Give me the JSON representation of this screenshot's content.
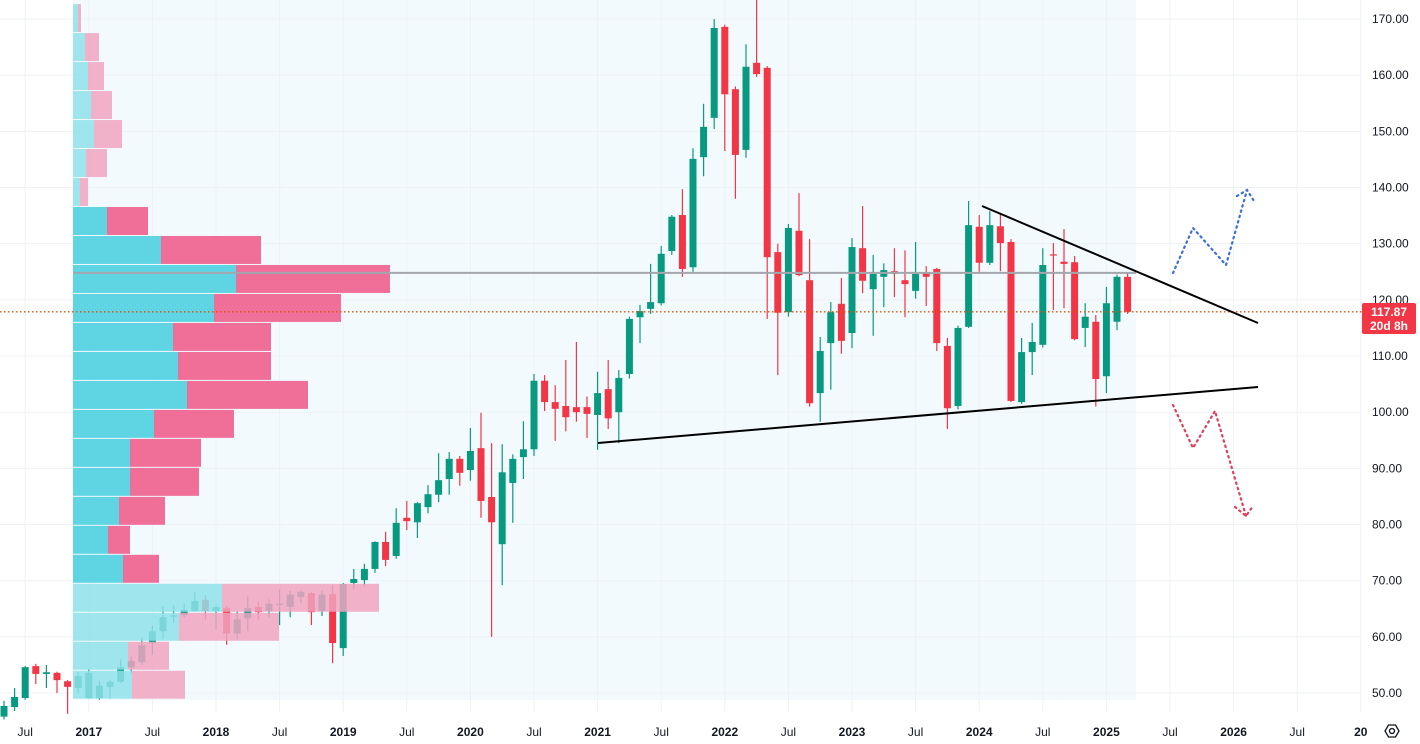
{
  "chart_data": {
    "type": "candlestick",
    "interval": "monthly",
    "start_month": "2016-05",
    "ohlc": [
      [
        45.8,
        48.6,
        45.3,
        47.7
      ],
      [
        47.5,
        50.9,
        46.8,
        49.3
      ],
      [
        49.1,
        54.8,
        48.8,
        54.6
      ],
      [
        54.8,
        55.2,
        51.6,
        53.4
      ],
      [
        53.4,
        55.0,
        50.9,
        53.7
      ],
      [
        53.6,
        53.8,
        50.0,
        52.3
      ],
      [
        52.1,
        52.3,
        46.3,
        51.1
      ],
      [
        50.9,
        53.7,
        50.0,
        53.0
      ],
      [
        49.1,
        54.3,
        49.0,
        53.6
      ],
      [
        49.1,
        52.2,
        48.8,
        51.3
      ],
      [
        51.1,
        52.3,
        49.0,
        52.0
      ],
      [
        52.0,
        56.0,
        51.8,
        54.6
      ],
      [
        54.6,
        56.4,
        53.6,
        55.7
      ],
      [
        55.5,
        59.9,
        55.0,
        58.5
      ],
      [
        58.9,
        62.0,
        56.8,
        61.0
      ],
      [
        61.0,
        65.5,
        59.6,
        63.5
      ],
      [
        63.6,
        65.7,
        62.5,
        63.8
      ],
      [
        63.9,
        65.9,
        63.5,
        64.8
      ],
      [
        64.6,
        68.0,
        64.5,
        66.4
      ],
      [
        66.6,
        67.4,
        63.1,
        64.6
      ],
      [
        64.6,
        65.8,
        61.3,
        65.3
      ],
      [
        65.1,
        65.5,
        58.6,
        60.6
      ],
      [
        60.6,
        64.5,
        59.6,
        63.1
      ],
      [
        63.3,
        67.2,
        61.0,
        65.1
      ],
      [
        65.3,
        66.2,
        63.1,
        64.4
      ],
      [
        64.6,
        66.7,
        63.5,
        65.9
      ],
      [
        65.8,
        68.5,
        62.1,
        65.9
      ],
      [
        65.3,
        68.2,
        63.5,
        67.5
      ],
      [
        67.1,
        68.2,
        66.0,
        68.0
      ],
      [
        67.8,
        68.0,
        62.1,
        64.4
      ],
      [
        64.6,
        68.2,
        63.7,
        67.5
      ],
      [
        67.6,
        69.2,
        55.3,
        58.9
      ],
      [
        58.0,
        69.6,
        56.6,
        69.4
      ],
      [
        69.6,
        72.1,
        68.5,
        70.3
      ],
      [
        70.1,
        73.0,
        69.0,
        72.1
      ],
      [
        72.1,
        77.0,
        71.4,
        76.9
      ],
      [
        76.9,
        78.7,
        72.6,
        73.7
      ],
      [
        74.4,
        82.9,
        73.9,
        80.3
      ],
      [
        81.2,
        84.2,
        79.0,
        80.6
      ],
      [
        80.4,
        84.0,
        77.6,
        83.8
      ],
      [
        83.1,
        87.0,
        82.0,
        85.4
      ],
      [
        85.3,
        92.7,
        84.0,
        87.9
      ],
      [
        88.1,
        92.9,
        85.3,
        91.7
      ],
      [
        91.7,
        92.2,
        86.9,
        89.2
      ],
      [
        89.7,
        97.2,
        87.8,
        93.1
      ],
      [
        93.6,
        99.9,
        81.2,
        84.2
      ],
      [
        84.9,
        94.5,
        60.0,
        80.4
      ],
      [
        76.5,
        94.3,
        69.2,
        89.3
      ],
      [
        87.4,
        92.5,
        80.3,
        91.7
      ],
      [
        92.0,
        98.4,
        88.1,
        93.4
      ],
      [
        93.4,
        106.8,
        92.2,
        105.6
      ],
      [
        105.6,
        106.6,
        100.2,
        101.8
      ],
      [
        101.8,
        104.8,
        94.9,
        100.6
      ],
      [
        101.1,
        109.3,
        96.6,
        99.1
      ],
      [
        100.9,
        112.5,
        98.3,
        100.0
      ],
      [
        100.9,
        102.8,
        95.4,
        99.7
      ],
      [
        99.5,
        107.2,
        93.3,
        103.4
      ],
      [
        104.1,
        109.3,
        97.0,
        98.9
      ],
      [
        100.0,
        107.5,
        94.5,
        106.1
      ],
      [
        106.8,
        117.0,
        106.0,
        116.6
      ],
      [
        116.9,
        119.1,
        112.3,
        118.0
      ],
      [
        118.4,
        126.4,
        117.5,
        119.6
      ],
      [
        119.4,
        129.6,
        119.0,
        128.2
      ],
      [
        128.7,
        135.1,
        128.0,
        134.8
      ],
      [
        135.1,
        139.7,
        124.1,
        125.5
      ],
      [
        125.8,
        147.0,
        125.0,
        145.1
      ],
      [
        145.4,
        154.9,
        142.0,
        150.8
      ],
      [
        152.4,
        170.0,
        150.4,
        168.4
      ],
      [
        168.6,
        169.0,
        146.5,
        156.6
      ],
      [
        157.5,
        158.0,
        138.0,
        145.8
      ],
      [
        146.7,
        165.5,
        145.3,
        161.5
      ],
      [
        162.2,
        173.5,
        159.7,
        160.2
      ],
      [
        161.3,
        161.6,
        116.6,
        127.6
      ],
      [
        128.5,
        130.0,
        106.6,
        117.7
      ],
      [
        117.8,
        133.5,
        117.0,
        132.8
      ],
      [
        132.3,
        139.0,
        124.2,
        124.4
      ],
      [
        123.5,
        130.8,
        101.0,
        101.6
      ],
      [
        103.4,
        113.4,
        98.3,
        110.9
      ],
      [
        112.3,
        119.6,
        104.0,
        117.8
      ],
      [
        119.3,
        123.9,
        110.4,
        112.7
      ],
      [
        114.1,
        131.0,
        111.4,
        129.4
      ],
      [
        129.2,
        136.7,
        121.2,
        123.4
      ],
      [
        121.9,
        128.0,
        113.6,
        124.6
      ],
      [
        124.1,
        126.5,
        118.7,
        125.3
      ],
      [
        125.1,
        129.2,
        120.5,
        124.6
      ],
      [
        123.5,
        128.8,
        116.9,
        122.8
      ],
      [
        121.6,
        130.3,
        120.2,
        124.6
      ],
      [
        124.8,
        126.0,
        118.9,
        124.1
      ],
      [
        125.5,
        125.7,
        110.9,
        112.3
      ],
      [
        111.8,
        113.2,
        97.0,
        100.7
      ],
      [
        101.1,
        115.4,
        100.5,
        115.0
      ],
      [
        115.2,
        137.6,
        115.0,
        133.3
      ],
      [
        133.0,
        135.1,
        125.0,
        126.6
      ],
      [
        126.6,
        135.8,
        126.2,
        133.3
      ],
      [
        133.1,
        135.5,
        125.1,
        130.1
      ],
      [
        130.3,
        130.8,
        101.8,
        102.0
      ],
      [
        101.8,
        113.2,
        101.5,
        110.7
      ],
      [
        110.7,
        115.9,
        106.6,
        112.5
      ],
      [
        112.0,
        129.2,
        111.5,
        126.2
      ],
      [
        128.1,
        130.1,
        118.2,
        127.9
      ],
      [
        126.8,
        132.6,
        118.5,
        126.4
      ],
      [
        126.7,
        127.8,
        112.8,
        113.0
      ],
      [
        115.0,
        119.4,
        111.6,
        117.0
      ],
      [
        116.1,
        117.3,
        101.0,
        105.9
      ],
      [
        106.4,
        122.3,
        103.4,
        119.4
      ],
      [
        116.1,
        124.5,
        114.6,
        124.1
      ],
      [
        124.1,
        124.8,
        117.5,
        117.87
      ]
    ],
    "volume_profile": {
      "row_low": 48.9,
      "row_size": 5.16,
      "rows_bottom_to_top": [
        {
          "up": 59,
          "down": 53,
          "in_value_area": false
        },
        {
          "up": 55,
          "down": 41,
          "in_value_area": false
        },
        {
          "up": 106,
          "down": 100,
          "in_value_area": false
        },
        {
          "up": 149,
          "down": 157,
          "in_value_area": false
        },
        {
          "up": 50,
          "down": 36,
          "in_value_area": true
        },
        {
          "up": 35,
          "down": 22,
          "in_value_area": true
        },
        {
          "up": 46,
          "down": 46,
          "in_value_area": true
        },
        {
          "up": 57,
          "down": 69,
          "in_value_area": true
        },
        {
          "up": 57,
          "down": 71,
          "in_value_area": true
        },
        {
          "up": 81,
          "down": 80,
          "in_value_area": true
        },
        {
          "up": 114,
          "down": 121,
          "in_value_area": true
        },
        {
          "up": 105,
          "down": 93,
          "in_value_area": true
        },
        {
          "up": 100,
          "down": 98,
          "in_value_area": true
        },
        {
          "up": 141,
          "down": 127,
          "in_value_area": true
        },
        {
          "up": 163,
          "down": 154,
          "in_value_area": true
        },
        {
          "up": 88,
          "down": 100,
          "in_value_area": true
        },
        {
          "up": 34,
          "down": 41,
          "in_value_area": true
        },
        {
          "up": 7,
          "down": 8,
          "in_value_area": false
        },
        {
          "up": 13,
          "down": 21,
          "in_value_area": false
        },
        {
          "up": 21,
          "down": 28,
          "in_value_area": false
        },
        {
          "up": 18,
          "down": 21,
          "in_value_area": false
        },
        {
          "up": 15,
          "down": 16,
          "in_value_area": false
        },
        {
          "up": 12,
          "down": 14,
          "in_value_area": false
        },
        {
          "up": 5,
          "down": 3,
          "in_value_area": false
        }
      ],
      "poc_price": 124.8
    },
    "last_price": 117.87,
    "last_price_label": "117.87",
    "countdown_label": "20d 8h",
    "y_axis": {
      "range": [
        50,
        170
      ],
      "ticks": [
        "170.00",
        "160.00",
        "150.00",
        "140.00",
        "130.00",
        "120.00",
        "110.00",
        "100.00",
        "90.00",
        "80.00",
        "70.00",
        "60.00",
        "50.00"
      ]
    },
    "x_axis": {
      "ticks": [
        {
          "label": "Jul",
          "month": "2016-07"
        },
        {
          "label": "2017",
          "month": "2017-01"
        },
        {
          "label": "Jul",
          "month": "2017-07"
        },
        {
          "label": "2018",
          "month": "2018-01"
        },
        {
          "label": "Jul",
          "month": "2018-07"
        },
        {
          "label": "2019",
          "month": "2019-01"
        },
        {
          "label": "Jul",
          "month": "2019-07"
        },
        {
          "label": "2020",
          "month": "2020-01"
        },
        {
          "label": "Jul",
          "month": "2020-07"
        },
        {
          "label": "2021",
          "month": "2021-01"
        },
        {
          "label": "Jul",
          "month": "2021-07"
        },
        {
          "label": "2022",
          "month": "2022-01"
        },
        {
          "label": "Jul",
          "month": "2022-07"
        },
        {
          "label": "2023",
          "month": "2023-01"
        },
        {
          "label": "Jul",
          "month": "2023-07"
        },
        {
          "label": "2024",
          "month": "2024-01"
        },
        {
          "label": "Jul",
          "month": "2024-07"
        },
        {
          "label": "2025",
          "month": "2025-01"
        },
        {
          "label": "Jul",
          "month": "2025-07"
        },
        {
          "label": "2026",
          "month": "2026-01"
        },
        {
          "label": "Jul",
          "month": "2026-07"
        },
        {
          "label": "20",
          "month": "2027-01"
        }
      ]
    },
    "grid": true,
    "colors": {
      "up": "#089981",
      "down": "#f23645",
      "vp_up": "#5ad3e2",
      "vp_down": "#ee6a96",
      "vp_up_light": "#8fe0ea",
      "vp_down_light": "#f0a3c0",
      "poc": "#a3a6ad",
      "last_price_line": "#e65100",
      "bullish_path": "#3d6fd6",
      "bearish_path": "#e0405a",
      "trendline": "#000000"
    }
  },
  "settings_icon": "settings-gear-icon"
}
